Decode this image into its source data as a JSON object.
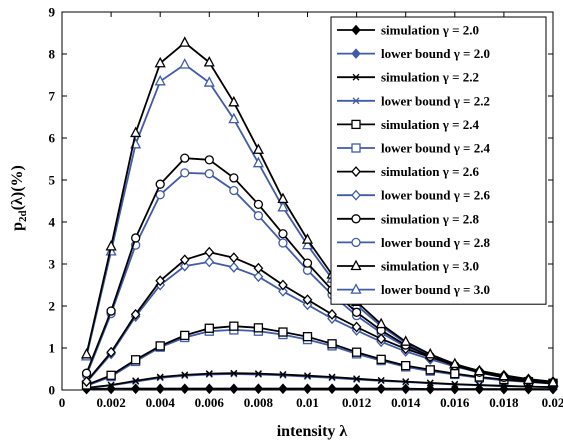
{
  "chart_data": {
    "type": "line",
    "xlabel": "intensity λ",
    "ylabel": "p2d(λ)(%)",
    "xlim": [
      0,
      0.02
    ],
    "ylim": [
      0,
      9
    ],
    "x_ticks": [
      "0",
      "0.002",
      "0.004",
      "0.006",
      "0.008",
      "0.01",
      "0.012",
      "0.014",
      "0.016",
      "0.018",
      "0.02"
    ],
    "y_ticks": [
      "0",
      "1",
      "2",
      "3",
      "4",
      "5",
      "6",
      "7",
      "8",
      "9"
    ],
    "legend_position": "top-right",
    "grid": false,
    "colors": {
      "simulation": "#000000",
      "lower_bound": "#3f5ba9"
    },
    "x": [
      0.001,
      0.002,
      0.003,
      0.004,
      0.005,
      0.006,
      0.007,
      0.008,
      0.009,
      0.01,
      0.011,
      0.012,
      0.013,
      0.014,
      0.015,
      0.016,
      0.017,
      0.018,
      0.019,
      0.02
    ],
    "series": [
      {
        "name": "simulation γ = 2.0",
        "marker": "diamond-filled",
        "values": [
          0.02,
          0.03,
          0.03,
          0.03,
          0.03,
          0.03,
          0.03,
          0.03,
          0.03,
          0.03,
          0.03,
          0.03,
          0.03,
          0.03,
          0.02,
          0.02,
          0.02,
          0.02,
          0.02,
          0.02
        ]
      },
      {
        "name": "lower bound γ = 2.0",
        "marker": "diamond-filled",
        "values": [
          0.02,
          0.02,
          0.03,
          0.03,
          0.03,
          0.03,
          0.03,
          0.03,
          0.03,
          0.03,
          0.03,
          0.03,
          0.03,
          0.02,
          0.02,
          0.02,
          0.02,
          0.02,
          0.02,
          0.02
        ]
      },
      {
        "name": "simulation γ = 2.2",
        "marker": "x",
        "values": [
          0.05,
          0.12,
          0.22,
          0.31,
          0.36,
          0.39,
          0.4,
          0.39,
          0.37,
          0.34,
          0.31,
          0.27,
          0.23,
          0.2,
          0.17,
          0.14,
          0.12,
          0.1,
          0.08,
          0.07
        ]
      },
      {
        "name": "lower bound γ = 2.2",
        "marker": "x",
        "values": [
          0.04,
          0.11,
          0.2,
          0.29,
          0.34,
          0.37,
          0.38,
          0.37,
          0.35,
          0.32,
          0.29,
          0.25,
          0.22,
          0.19,
          0.16,
          0.13,
          0.11,
          0.09,
          0.08,
          0.07
        ]
      },
      {
        "name": "simulation γ = 2.4",
        "marker": "square",
        "values": [
          0.12,
          0.35,
          0.72,
          1.05,
          1.3,
          1.47,
          1.52,
          1.48,
          1.38,
          1.27,
          1.1,
          0.9,
          0.73,
          0.58,
          0.48,
          0.39,
          0.31,
          0.25,
          0.2,
          0.16
        ]
      },
      {
        "name": "lower bound γ = 2.4",
        "marker": "square",
        "values": [
          0.1,
          0.32,
          0.68,
          1.02,
          1.25,
          1.4,
          1.43,
          1.4,
          1.32,
          1.2,
          1.05,
          0.86,
          0.7,
          0.55,
          0.45,
          0.37,
          0.29,
          0.23,
          0.19,
          0.15
        ]
      },
      {
        "name": "simulation γ = 2.6",
        "marker": "diamond",
        "values": [
          0.2,
          0.9,
          1.8,
          2.6,
          3.1,
          3.28,
          3.15,
          2.9,
          2.5,
          2.15,
          1.8,
          1.5,
          1.22,
          0.98,
          0.78,
          0.6,
          0.46,
          0.35,
          0.26,
          0.2
        ]
      },
      {
        "name": "lower bound γ = 2.6",
        "marker": "diamond",
        "values": [
          0.18,
          0.86,
          1.75,
          2.5,
          2.95,
          3.05,
          2.92,
          2.7,
          2.35,
          2.03,
          1.7,
          1.42,
          1.15,
          0.92,
          0.73,
          0.56,
          0.43,
          0.33,
          0.25,
          0.19
        ]
      },
      {
        "name": "simulation γ = 2.8",
        "marker": "circle",
        "values": [
          0.4,
          1.88,
          3.62,
          4.9,
          5.52,
          5.48,
          5.05,
          4.42,
          3.72,
          3.02,
          2.38,
          1.85,
          1.42,
          1.07,
          0.8,
          0.58,
          0.42,
          0.3,
          0.22,
          0.16
        ]
      },
      {
        "name": "lower bound γ = 2.8",
        "marker": "circle",
        "values": [
          0.35,
          1.82,
          3.45,
          4.65,
          5.17,
          5.15,
          4.75,
          4.15,
          3.5,
          2.85,
          2.27,
          1.77,
          1.36,
          1.03,
          0.77,
          0.57,
          0.41,
          0.3,
          0.22,
          0.16
        ]
      },
      {
        "name": "simulation γ = 3.0",
        "marker": "triangle",
        "values": [
          0.85,
          3.42,
          6.12,
          7.78,
          8.27,
          7.8,
          6.85,
          5.72,
          4.55,
          3.58,
          2.75,
          2.1,
          1.57,
          1.15,
          0.85,
          0.62,
          0.45,
          0.33,
          0.24,
          0.18
        ]
      },
      {
        "name": "lower bound γ = 3.0",
        "marker": "triangle",
        "values": [
          0.8,
          3.3,
          5.85,
          7.35,
          7.75,
          7.32,
          6.45,
          5.4,
          4.35,
          3.45,
          2.65,
          2.02,
          1.52,
          1.12,
          0.83,
          0.6,
          0.44,
          0.32,
          0.24,
          0.18
        ]
      }
    ]
  }
}
